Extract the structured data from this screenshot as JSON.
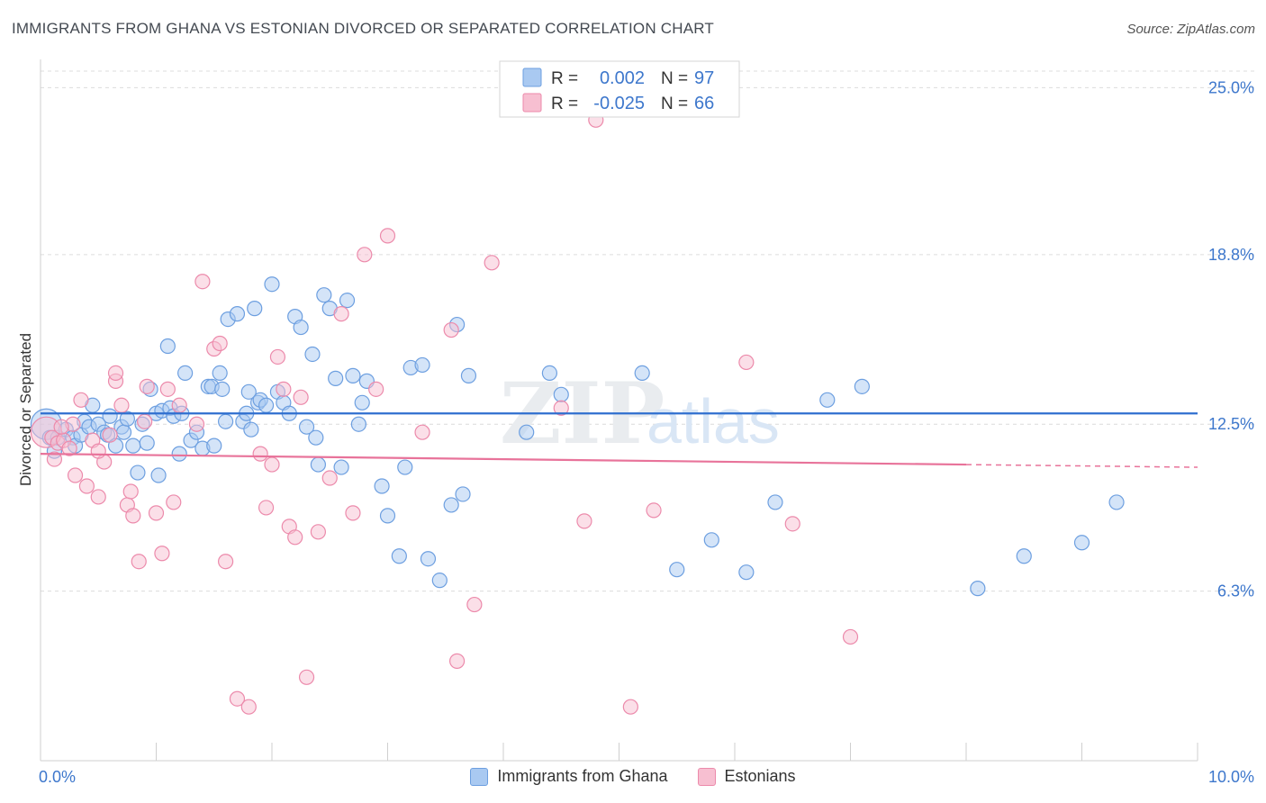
{
  "header": {
    "title": "IMMIGRANTS FROM GHANA VS ESTONIAN DIVORCED OR SEPARATED CORRELATION CHART",
    "source": "Source: ZipAtlas.com"
  },
  "watermark": {
    "zip": "ZIP",
    "atlas": "atlas"
  },
  "colors": {
    "blue_fill": "#a9c9f1",
    "blue_stroke": "#6d9fe0",
    "blue_line": "#2f6fcf",
    "pink_fill": "#f7bfd1",
    "pink_stroke": "#ec8aab",
    "pink_line": "#e8739a",
    "axis_text": "#3d77cc",
    "grid": "#dcdcdc"
  },
  "stats_legend": [
    {
      "r_label": "R =",
      "r_value": "0.002",
      "n_label": "N =",
      "n_value": "97",
      "series": "blue"
    },
    {
      "r_label": "R =",
      "r_value": "-0.025",
      "n_label": "N =",
      "n_value": "66",
      "series": "pink"
    }
  ],
  "chart_data": {
    "type": "scatter",
    "xlabel": "",
    "ylabel": "Divorced or Separated",
    "xlim": [
      0,
      10
    ],
    "ylim": [
      0,
      25.75
    ],
    "x_tick_labels": [
      "0.0%",
      "10.0%"
    ],
    "y_ticks": [
      6.3,
      12.5,
      18.8,
      25.0
    ],
    "y_tick_labels": [
      "6.3%",
      "12.5%",
      "18.8%",
      "25.0%"
    ],
    "grid": "horizontal-dashed",
    "legend": "bottom-center",
    "series": [
      {
        "name": "Immigrants from Ghana",
        "color": "blue",
        "trend": {
          "x": [
            0,
            10
          ],
          "y": [
            12.9,
            12.9
          ]
        },
        "points": [
          {
            "x": 0.05,
            "y": 12.5,
            "big": true
          },
          {
            "x": 0.08,
            "y": 12.0
          },
          {
            "x": 0.12,
            "y": 11.5
          },
          {
            "x": 0.15,
            "y": 12.0
          },
          {
            "x": 0.22,
            "y": 12.3
          },
          {
            "x": 0.28,
            "y": 12.0
          },
          {
            "x": 0.3,
            "y": 11.7
          },
          {
            "x": 0.35,
            "y": 12.1
          },
          {
            "x": 0.38,
            "y": 12.6
          },
          {
            "x": 0.42,
            "y": 12.4
          },
          {
            "x": 0.45,
            "y": 13.2
          },
          {
            "x": 0.5,
            "y": 12.5
          },
          {
            "x": 0.55,
            "y": 12.2
          },
          {
            "x": 0.58,
            "y": 12.1
          },
          {
            "x": 0.6,
            "y": 12.8
          },
          {
            "x": 0.65,
            "y": 11.7
          },
          {
            "x": 0.7,
            "y": 12.4
          },
          {
            "x": 0.72,
            "y": 12.2
          },
          {
            "x": 0.75,
            "y": 12.7
          },
          {
            "x": 0.8,
            "y": 11.7
          },
          {
            "x": 0.84,
            "y": 10.7
          },
          {
            "x": 0.88,
            "y": 12.5
          },
          {
            "x": 0.92,
            "y": 11.8
          },
          {
            "x": 0.95,
            "y": 13.8
          },
          {
            "x": 1.0,
            "y": 12.9
          },
          {
            "x": 1.02,
            "y": 10.6
          },
          {
            "x": 1.05,
            "y": 13.0
          },
          {
            "x": 1.1,
            "y": 15.4
          },
          {
            "x": 1.12,
            "y": 13.1
          },
          {
            "x": 1.15,
            "y": 12.8
          },
          {
            "x": 1.2,
            "y": 11.4
          },
          {
            "x": 1.22,
            "y": 12.9
          },
          {
            "x": 1.25,
            "y": 14.4
          },
          {
            "x": 1.3,
            "y": 11.9
          },
          {
            "x": 1.35,
            "y": 12.2
          },
          {
            "x": 1.4,
            "y": 11.6
          },
          {
            "x": 1.45,
            "y": 13.9
          },
          {
            "x": 1.48,
            "y": 13.9
          },
          {
            "x": 1.5,
            "y": 11.7
          },
          {
            "x": 1.55,
            "y": 14.4
          },
          {
            "x": 1.57,
            "y": 13.8
          },
          {
            "x": 1.6,
            "y": 12.6
          },
          {
            "x": 1.62,
            "y": 16.4
          },
          {
            "x": 1.7,
            "y": 16.6
          },
          {
            "x": 1.75,
            "y": 12.6
          },
          {
            "x": 1.78,
            "y": 12.9
          },
          {
            "x": 1.8,
            "y": 13.7
          },
          {
            "x": 1.82,
            "y": 12.3
          },
          {
            "x": 1.85,
            "y": 16.8
          },
          {
            "x": 1.88,
            "y": 13.3
          },
          {
            "x": 1.9,
            "y": 13.4
          },
          {
            "x": 1.95,
            "y": 13.2
          },
          {
            "x": 2.0,
            "y": 17.7
          },
          {
            "x": 2.05,
            "y": 13.7
          },
          {
            "x": 2.1,
            "y": 13.3
          },
          {
            "x": 2.15,
            "y": 12.9
          },
          {
            "x": 2.2,
            "y": 16.5
          },
          {
            "x": 2.25,
            "y": 16.1
          },
          {
            "x": 2.3,
            "y": 12.4
          },
          {
            "x": 2.35,
            "y": 15.1
          },
          {
            "x": 2.38,
            "y": 12.0
          },
          {
            "x": 2.4,
            "y": 11.0
          },
          {
            "x": 2.45,
            "y": 17.3
          },
          {
            "x": 2.5,
            "y": 16.8
          },
          {
            "x": 2.55,
            "y": 14.2
          },
          {
            "x": 2.6,
            "y": 10.9
          },
          {
            "x": 2.65,
            "y": 17.1
          },
          {
            "x": 2.7,
            "y": 14.3
          },
          {
            "x": 2.75,
            "y": 12.5
          },
          {
            "x": 2.78,
            "y": 13.3
          },
          {
            "x": 2.82,
            "y": 14.1
          },
          {
            "x": 2.95,
            "y": 10.2
          },
          {
            "x": 3.0,
            "y": 9.1
          },
          {
            "x": 3.1,
            "y": 7.6
          },
          {
            "x": 3.15,
            "y": 10.9
          },
          {
            "x": 3.2,
            "y": 14.6
          },
          {
            "x": 3.3,
            "y": 14.7
          },
          {
            "x": 3.35,
            "y": 7.5
          },
          {
            "x": 3.45,
            "y": 6.7
          },
          {
            "x": 3.55,
            "y": 9.5
          },
          {
            "x": 3.6,
            "y": 16.2
          },
          {
            "x": 3.65,
            "y": 9.9
          },
          {
            "x": 3.7,
            "y": 14.3
          },
          {
            "x": 4.2,
            "y": 12.2
          },
          {
            "x": 4.4,
            "y": 14.4
          },
          {
            "x": 4.5,
            "y": 13.6
          },
          {
            "x": 5.2,
            "y": 14.4
          },
          {
            "x": 5.5,
            "y": 7.1
          },
          {
            "x": 5.8,
            "y": 8.2
          },
          {
            "x": 6.1,
            "y": 7.0
          },
          {
            "x": 6.35,
            "y": 9.6
          },
          {
            "x": 6.8,
            "y": 13.4
          },
          {
            "x": 7.1,
            "y": 13.9
          },
          {
            "x": 8.1,
            "y": 6.4
          },
          {
            "x": 8.5,
            "y": 7.6
          },
          {
            "x": 9.3,
            "y": 9.6
          },
          {
            "x": 9.0,
            "y": 8.1
          }
        ]
      },
      {
        "name": "Estonians",
        "color": "pink",
        "trend": {
          "x": [
            0,
            8.0
          ],
          "y": [
            11.4,
            11.0
          ],
          "dashed_to": [
            10,
            10.9
          ]
        },
        "points": [
          {
            "x": 0.05,
            "y": 12.2,
            "big": true
          },
          {
            "x": 0.1,
            "y": 12.0
          },
          {
            "x": 0.15,
            "y": 11.8
          },
          {
            "x": 0.2,
            "y": 11.9
          },
          {
            "x": 0.25,
            "y": 11.6
          },
          {
            "x": 0.28,
            "y": 12.5
          },
          {
            "x": 0.3,
            "y": 10.6
          },
          {
            "x": 0.35,
            "y": 13.4
          },
          {
            "x": 0.4,
            "y": 10.2
          },
          {
            "x": 0.45,
            "y": 11.9
          },
          {
            "x": 0.5,
            "y": 9.8
          },
          {
            "x": 0.55,
            "y": 11.1
          },
          {
            "x": 0.6,
            "y": 12.1
          },
          {
            "x": 0.65,
            "y": 14.1
          },
          {
            "x": 0.7,
            "y": 13.2
          },
          {
            "x": 0.75,
            "y": 9.5
          },
          {
            "x": 0.78,
            "y": 10.0
          },
          {
            "x": 0.8,
            "y": 9.1
          },
          {
            "x": 0.85,
            "y": 7.4
          },
          {
            "x": 0.9,
            "y": 12.6
          },
          {
            "x": 0.92,
            "y": 13.9
          },
          {
            "x": 1.0,
            "y": 9.2
          },
          {
            "x": 1.05,
            "y": 7.7
          },
          {
            "x": 1.1,
            "y": 13.8
          },
          {
            "x": 1.15,
            "y": 9.6
          },
          {
            "x": 1.2,
            "y": 13.2
          },
          {
            "x": 1.35,
            "y": 12.5
          },
          {
            "x": 1.4,
            "y": 17.8
          },
          {
            "x": 1.5,
            "y": 15.3
          },
          {
            "x": 1.55,
            "y": 15.5
          },
          {
            "x": 1.6,
            "y": 7.4
          },
          {
            "x": 1.7,
            "y": 2.3
          },
          {
            "x": 1.8,
            "y": 2.0
          },
          {
            "x": 1.9,
            "y": 11.4
          },
          {
            "x": 2.0,
            "y": 11.0
          },
          {
            "x": 2.05,
            "y": 15.0
          },
          {
            "x": 2.1,
            "y": 13.8
          },
          {
            "x": 2.15,
            "y": 8.7
          },
          {
            "x": 2.2,
            "y": 8.3
          },
          {
            "x": 2.25,
            "y": 13.5
          },
          {
            "x": 2.3,
            "y": 3.1
          },
          {
            "x": 2.4,
            "y": 8.5
          },
          {
            "x": 2.5,
            "y": 10.5
          },
          {
            "x": 2.6,
            "y": 16.6
          },
          {
            "x": 2.7,
            "y": 9.2
          },
          {
            "x": 2.8,
            "y": 18.8
          },
          {
            "x": 2.9,
            "y": 13.8
          },
          {
            "x": 3.0,
            "y": 19.5
          },
          {
            "x": 3.3,
            "y": 12.2
          },
          {
            "x": 3.55,
            "y": 16.0
          },
          {
            "x": 3.6,
            "y": 3.7
          },
          {
            "x": 3.75,
            "y": 5.8
          },
          {
            "x": 3.9,
            "y": 18.5
          },
          {
            "x": 4.5,
            "y": 13.1
          },
          {
            "x": 4.7,
            "y": 8.9
          },
          {
            "x": 4.8,
            "y": 23.8
          },
          {
            "x": 5.1,
            "y": 2.0
          },
          {
            "x": 5.3,
            "y": 9.3
          },
          {
            "x": 6.1,
            "y": 14.8
          },
          {
            "x": 6.5,
            "y": 8.8
          },
          {
            "x": 7.0,
            "y": 4.6
          },
          {
            "x": 0.12,
            "y": 11.2
          },
          {
            "x": 0.18,
            "y": 12.4
          },
          {
            "x": 0.5,
            "y": 11.5
          },
          {
            "x": 0.65,
            "y": 14.4
          },
          {
            "x": 1.95,
            "y": 9.4
          }
        ]
      }
    ]
  }
}
